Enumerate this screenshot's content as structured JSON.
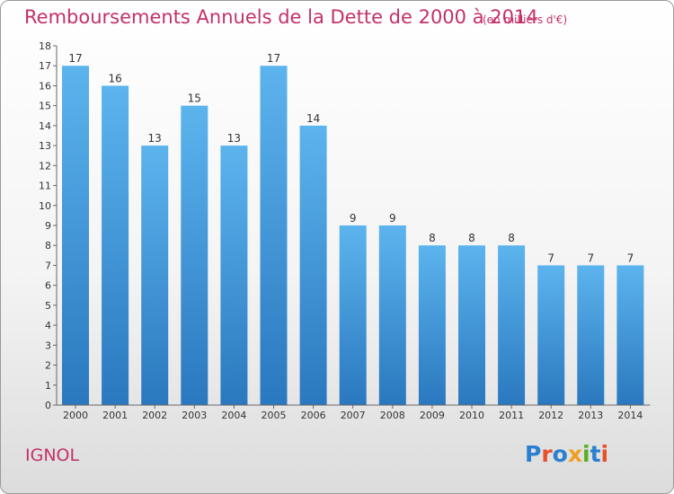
{
  "chart_data": {
    "type": "bar",
    "title": "Remboursements Annuels de la Dette de 2000 à 2014",
    "unit_label": "(en milliers d'€)",
    "categories": [
      "2000",
      "2001",
      "2002",
      "2003",
      "2004",
      "2005",
      "2006",
      "2007",
      "2008",
      "2009",
      "2010",
      "2011",
      "2012",
      "2013",
      "2014"
    ],
    "values": [
      17,
      16,
      13,
      15,
      13,
      17,
      14,
      9,
      9,
      8,
      8,
      8,
      7,
      7,
      7
    ],
    "ylim": [
      0,
      18
    ],
    "yticks": [
      "0",
      "1",
      "2",
      "3",
      "4",
      "5",
      "6",
      "7",
      "8",
      "9",
      "10",
      "11",
      "12",
      "13",
      "14",
      "15",
      "16",
      "17",
      "18"
    ],
    "grid": false,
    "bar_color": "#3d9ee0"
  },
  "footer": {
    "town": "IGNOL",
    "logo": {
      "text": "Proxiti",
      "letter_colors": [
        "#2a7fd0",
        "#e8502a",
        "#2a7fd0",
        "#f0a020",
        "#58b020",
        "#2a7fd0",
        "#e8502a"
      ]
    }
  }
}
